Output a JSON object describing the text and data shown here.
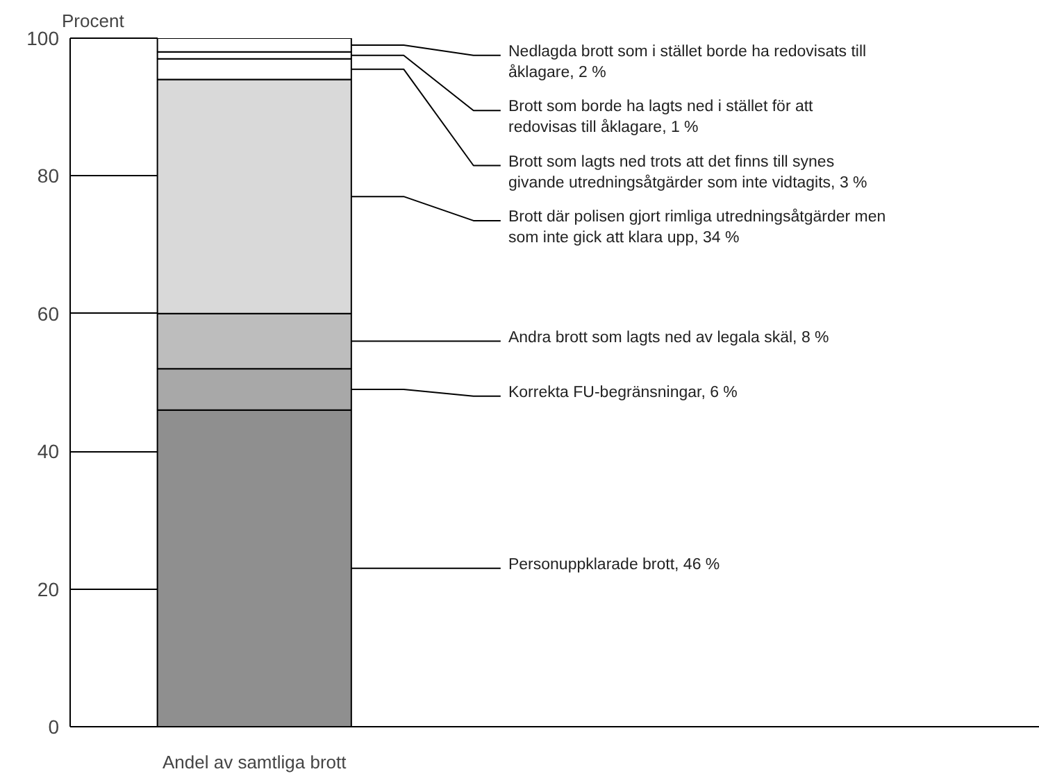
{
  "chart_data": {
    "type": "bar",
    "stacked": true,
    "categories": [
      "Andel av samtliga brott"
    ],
    "ylabel": "Procent",
    "ylim": [
      0,
      100
    ],
    "yticks": [
      0,
      20,
      40,
      60,
      80,
      100
    ],
    "grid": false,
    "legend": false,
    "series": [
      {
        "name": "Personuppklarade brott, 46 %",
        "color": "#8f8f8f",
        "values": [
          46
        ]
      },
      {
        "name": "Korrekta FU-begränsningar, 6 %",
        "color": "#a8a8a8",
        "values": [
          6
        ]
      },
      {
        "name": "Andra brott som lagts ned av legala skäl, 8 %",
        "color": "#bdbdbd",
        "values": [
          8
        ]
      },
      {
        "name": "Brott där polisen gjort rimliga utredningsåtgärder men som inte gick att klara upp, 34 %",
        "color": "#d9d9d9",
        "values": [
          34
        ]
      },
      {
        "name": "Brott som lagts ned trots att det finns till synes givande utredningsåtgärder som inte vidtagits, 3 %",
        "color": "#ffffff",
        "values": [
          3
        ]
      },
      {
        "name": "Brott som borde ha lagts ned i stället för att redovisas till åklagare, 1 %",
        "color": "#ffffff",
        "values": [
          1
        ]
      },
      {
        "name": "Nedlagda brott som i stället borde ha redovisats till åklagare, 2 %",
        "color": "#ffffff",
        "values": [
          2
        ]
      }
    ]
  }
}
